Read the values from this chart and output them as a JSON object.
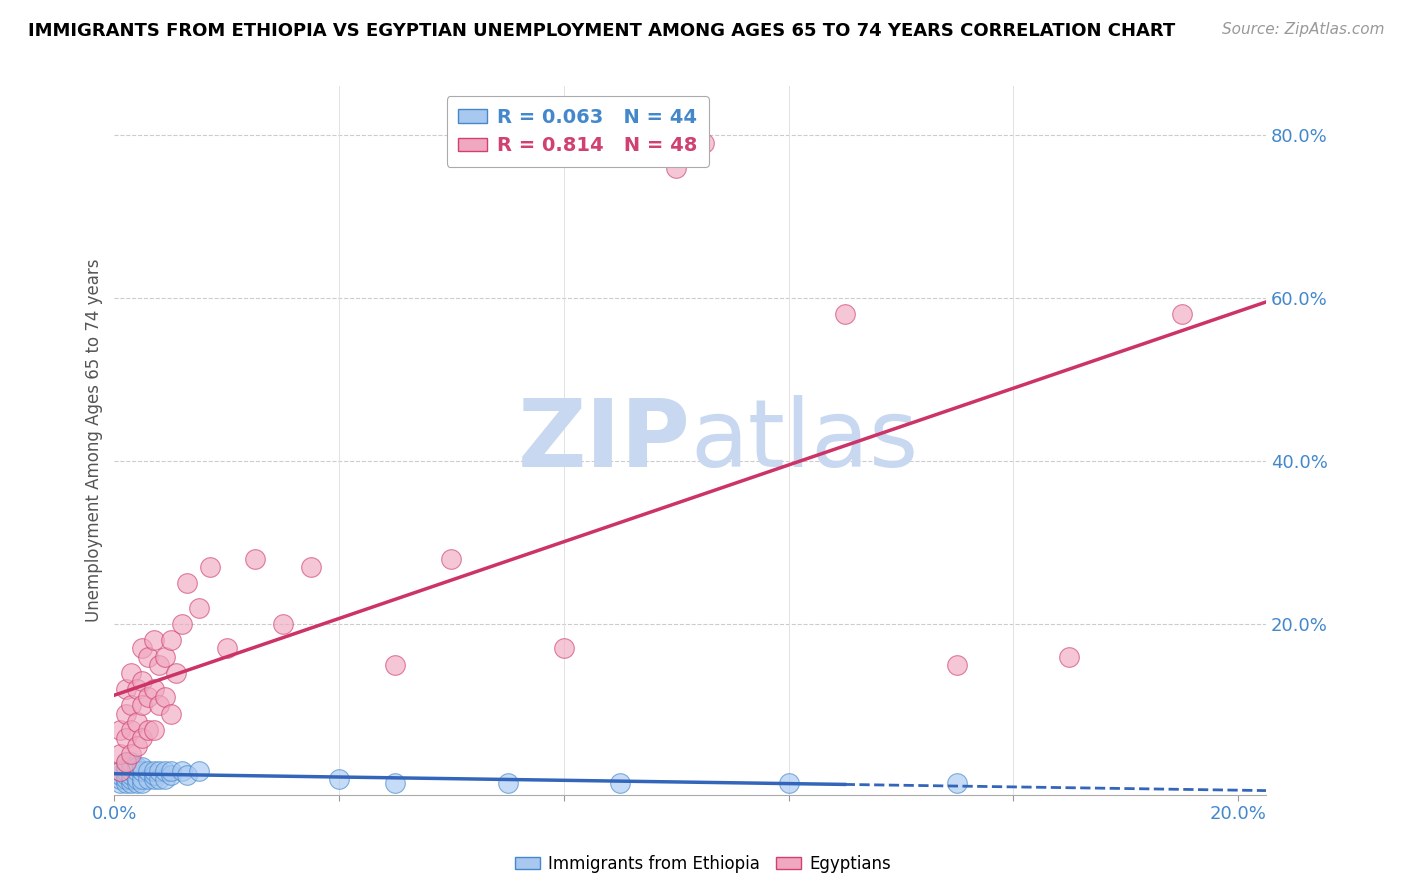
{
  "title": "IMMIGRANTS FROM ETHIOPIA VS EGYPTIAN UNEMPLOYMENT AMONG AGES 65 TO 74 YEARS CORRELATION CHART",
  "source": "Source: ZipAtlas.com",
  "ylabel": "Unemployment Among Ages 65 to 74 years",
  "xlim": [
    0.0,
    0.205
  ],
  "ylim": [
    -0.01,
    0.86
  ],
  "blue_R": 0.063,
  "blue_N": 44,
  "pink_R": 0.814,
  "pink_N": 48,
  "blue_color": "#A8C8F0",
  "pink_color": "#F0A8C0",
  "blue_edge_color": "#4488CC",
  "pink_edge_color": "#D04070",
  "blue_line_color": "#3366BB",
  "pink_line_color": "#CC3366",
  "watermark_color": "#C8D8F0",
  "legend_label_blue": "Immigrants from Ethiopia",
  "legend_label_pink": "Egyptians",
  "blue_scatter_x": [
    0.001,
    0.001,
    0.001,
    0.001,
    0.002,
    0.002,
    0.002,
    0.002,
    0.002,
    0.002,
    0.003,
    0.003,
    0.003,
    0.003,
    0.003,
    0.003,
    0.004,
    0.004,
    0.004,
    0.004,
    0.005,
    0.005,
    0.005,
    0.005,
    0.006,
    0.006,
    0.007,
    0.007,
    0.007,
    0.008,
    0.008,
    0.009,
    0.009,
    0.01,
    0.01,
    0.012,
    0.013,
    0.015,
    0.04,
    0.05,
    0.07,
    0.09,
    0.12,
    0.15
  ],
  "blue_scatter_y": [
    0.005,
    0.01,
    0.015,
    0.02,
    0.005,
    0.01,
    0.015,
    0.02,
    0.025,
    0.03,
    0.005,
    0.01,
    0.015,
    0.02,
    0.025,
    0.03,
    0.005,
    0.01,
    0.02,
    0.025,
    0.005,
    0.01,
    0.02,
    0.025,
    0.01,
    0.02,
    0.01,
    0.015,
    0.02,
    0.01,
    0.02,
    0.01,
    0.02,
    0.015,
    0.02,
    0.02,
    0.015,
    0.02,
    0.01,
    0.005,
    0.005,
    0.005,
    0.005,
    0.005
  ],
  "pink_scatter_x": [
    0.001,
    0.001,
    0.001,
    0.002,
    0.002,
    0.002,
    0.002,
    0.003,
    0.003,
    0.003,
    0.003,
    0.004,
    0.004,
    0.004,
    0.005,
    0.005,
    0.005,
    0.005,
    0.006,
    0.006,
    0.006,
    0.007,
    0.007,
    0.007,
    0.008,
    0.008,
    0.009,
    0.009,
    0.01,
    0.01,
    0.011,
    0.012,
    0.013,
    0.015,
    0.017,
    0.02,
    0.025,
    0.03,
    0.035,
    0.05,
    0.06,
    0.08,
    0.1,
    0.105,
    0.13,
    0.15,
    0.17,
    0.19
  ],
  "pink_scatter_y": [
    0.02,
    0.04,
    0.07,
    0.03,
    0.06,
    0.09,
    0.12,
    0.04,
    0.07,
    0.1,
    0.14,
    0.05,
    0.08,
    0.12,
    0.06,
    0.1,
    0.13,
    0.17,
    0.07,
    0.11,
    0.16,
    0.07,
    0.12,
    0.18,
    0.1,
    0.15,
    0.11,
    0.16,
    0.09,
    0.18,
    0.14,
    0.2,
    0.25,
    0.22,
    0.27,
    0.17,
    0.28,
    0.2,
    0.27,
    0.15,
    0.28,
    0.17,
    0.76,
    0.79,
    0.58,
    0.15,
    0.16,
    0.58
  ]
}
